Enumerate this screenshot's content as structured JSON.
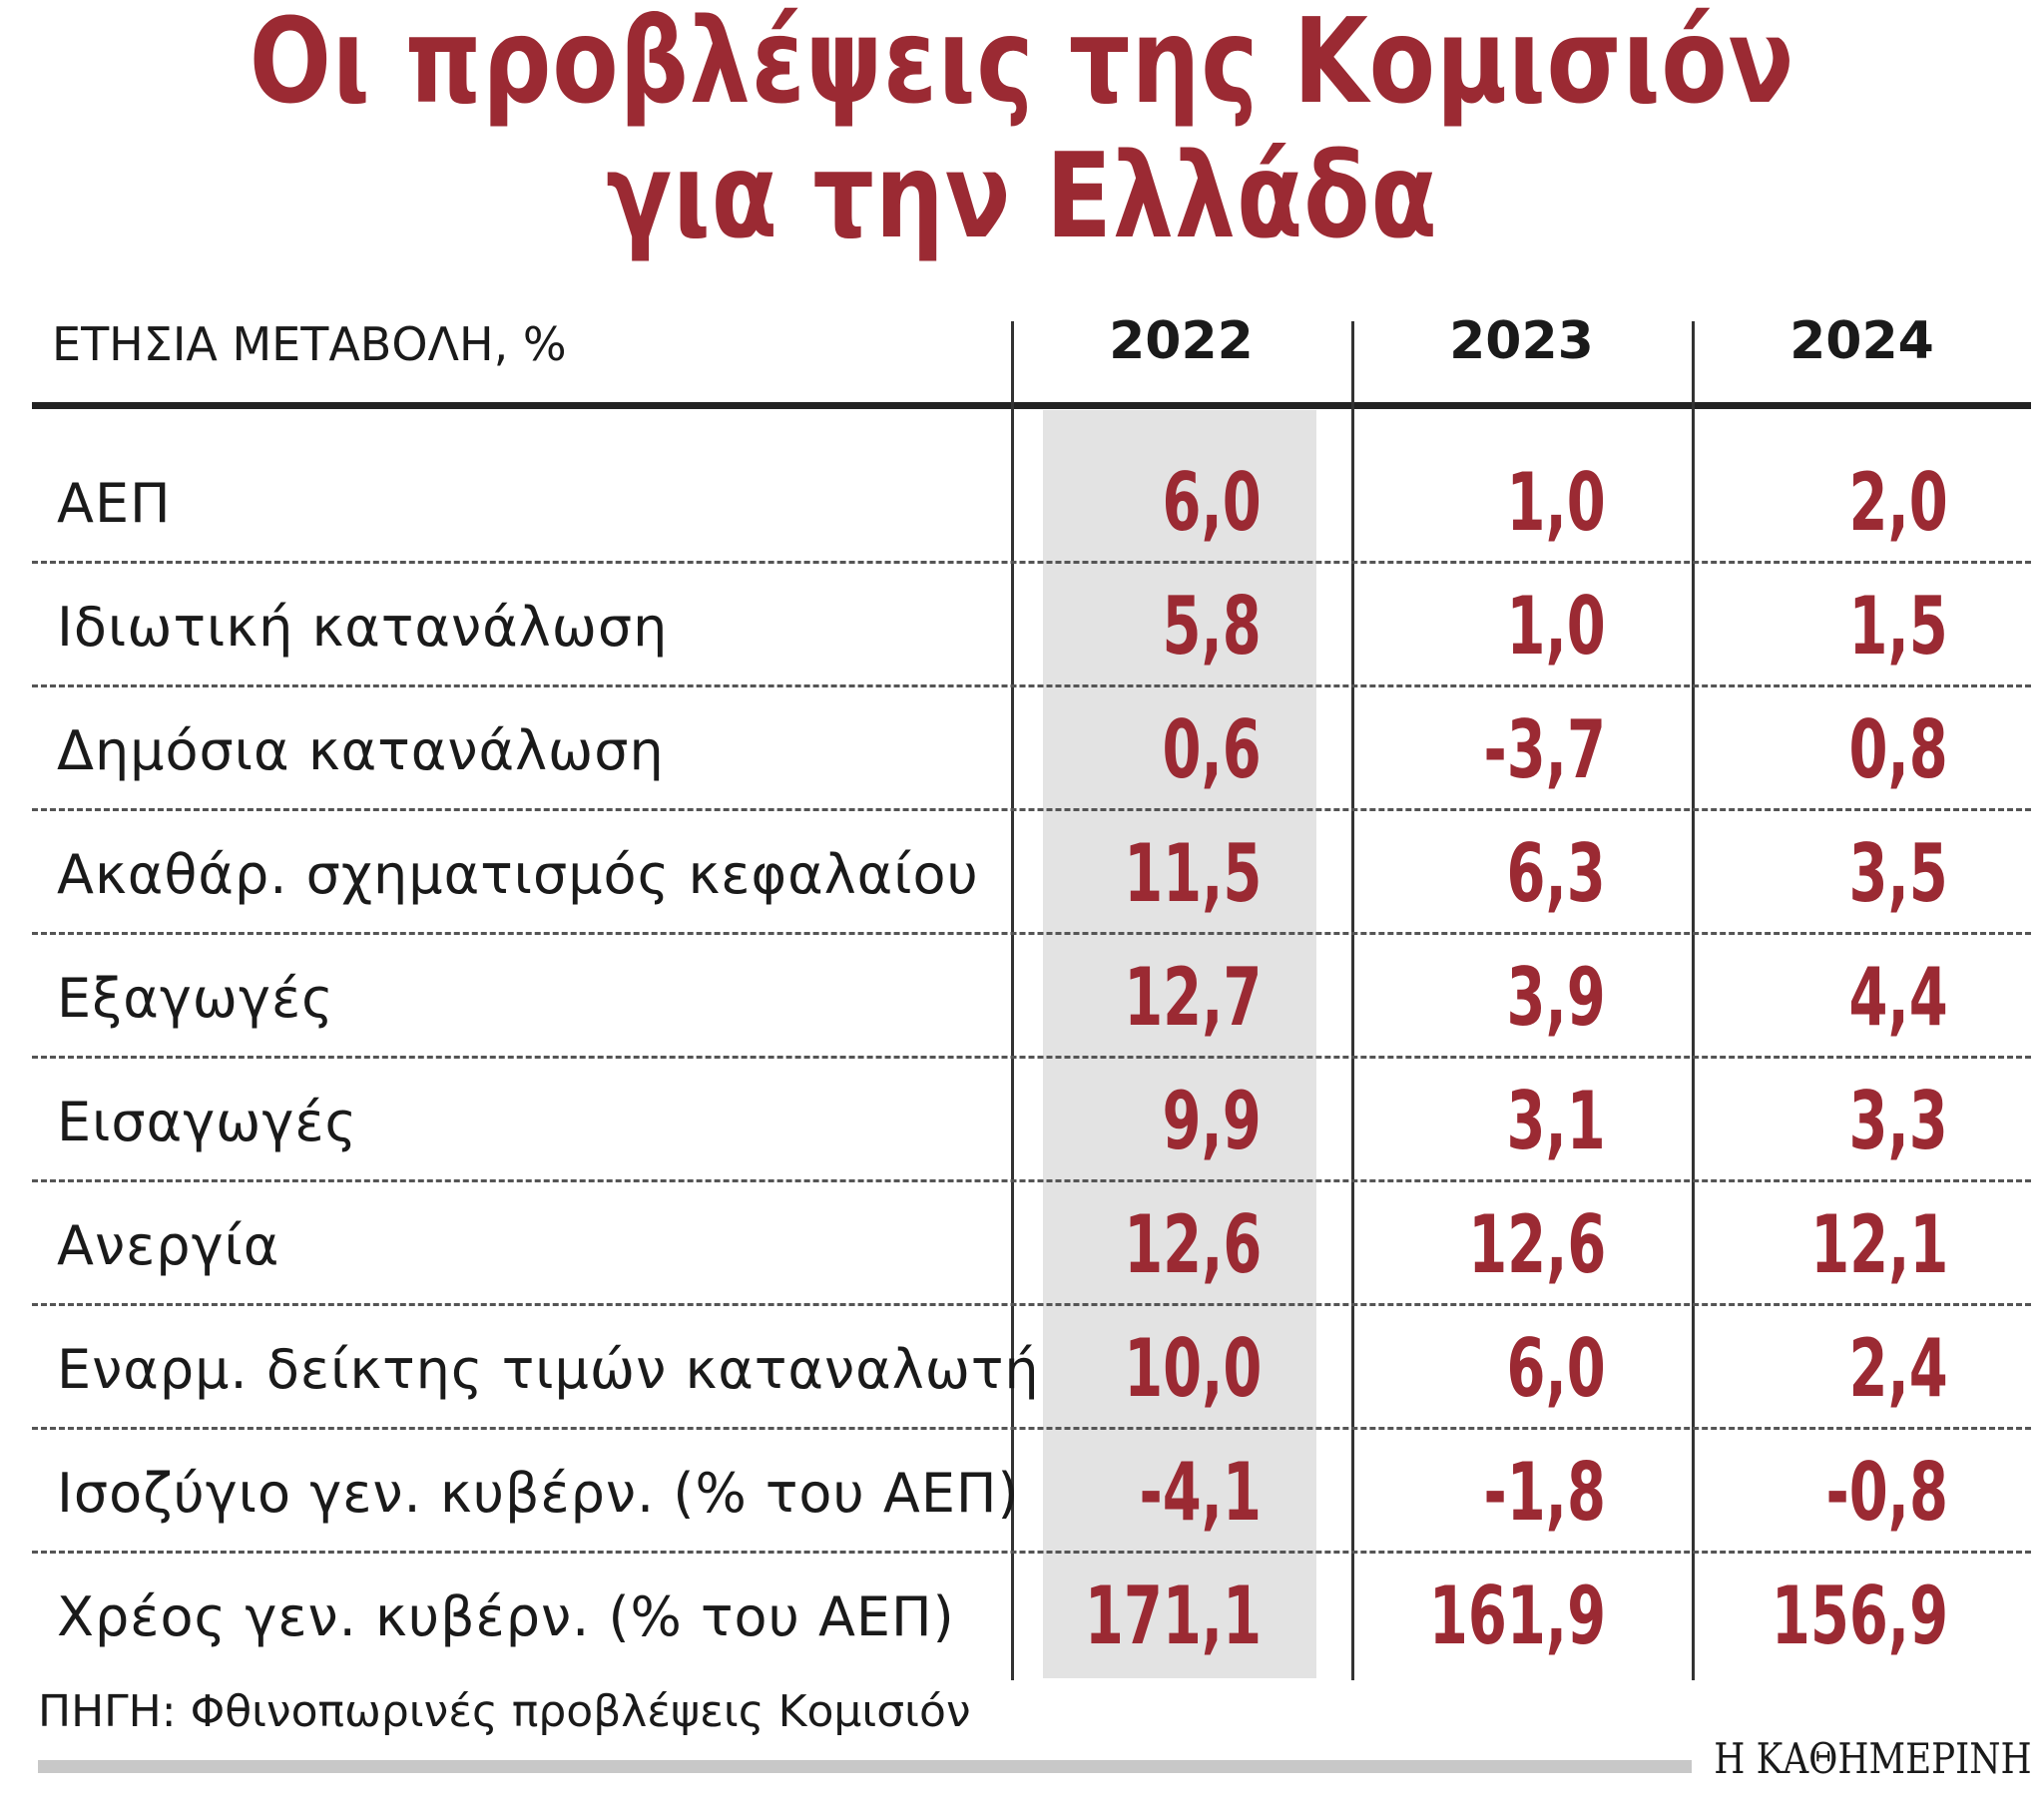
{
  "title": [
    "Οι προβλέψεις της Κομισιόν",
    "για την Ελλάδα"
  ],
  "table": {
    "header": [
      "ΕΤΗΣΙΑ ΜΕΤΑΒΟΛΗ, %",
      "2022",
      "2023",
      "2024"
    ],
    "rows": [
      [
        "ΑΕΠ",
        "6,0",
        "1,0",
        "2,0"
      ],
      [
        "Ιδιωτική κατανάλωση",
        "5,8",
        "1,0",
        "1,5"
      ],
      [
        "Δημόσια κατανάλωση",
        "0,6",
        "-3,7",
        "0,8"
      ],
      [
        "Ακαθάρ. σχηματισμός κεφαλαίου",
        "11,5",
        "6,3",
        "3,5"
      ],
      [
        "Εξαγωγές",
        "12,7",
        "3,9",
        "4,4"
      ],
      [
        "Εισαγωγές",
        "9,9",
        "3,1",
        "3,3"
      ],
      [
        "Ανεργία",
        "12,6",
        "12,6",
        "12,1"
      ],
      [
        "Εναρμ. δείκτης τιμών καταναλωτή",
        "10,0",
        "6,0",
        "2,4"
      ],
      [
        "Ισοζύγιο γεν. κυβέρν. (% του ΑΕΠ)",
        "-4,1",
        "-1,8",
        "-0,8"
      ],
      [
        "Χρέος γεν. κυβέρν. (% του ΑΕΠ)",
        "171,1",
        "161,9",
        "156,9"
      ]
    ]
  },
  "source": "ΠΗΓΗ: Φθινοπωρινές προβλέψεις Κομισιόν",
  "logo": "Η ΚΑΘΗΜΕΡΙΝΗ"
}
